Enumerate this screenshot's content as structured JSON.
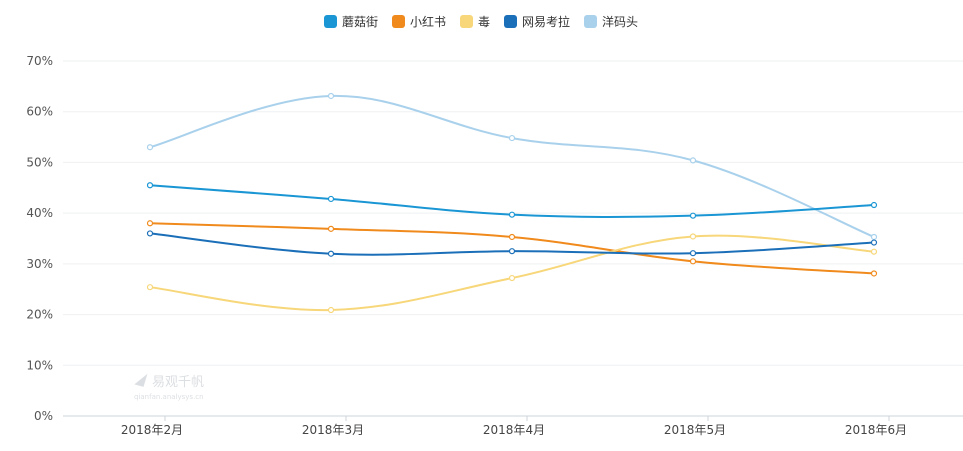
{
  "chart_data": {
    "type": "line",
    "title": "",
    "xlabel": "",
    "ylabel": "",
    "categories": [
      "2018年2月",
      "2018年3月",
      "2018年4月",
      "2018年5月",
      "2018年6月"
    ],
    "ylim": [
      0,
      70
    ],
    "yticks": [
      0,
      10,
      20,
      30,
      40,
      50,
      60,
      70
    ],
    "ytick_labels": [
      "0%",
      "10%",
      "20%",
      "30%",
      "40%",
      "50%",
      "60%",
      "70%"
    ],
    "grid": true,
    "legend_position": "top-center",
    "series": [
      {
        "name": "蘑菇街",
        "color": "#1a96d4",
        "values": [
          45.5,
          42.8,
          39.7,
          39.5,
          41.6
        ]
      },
      {
        "name": "小红书",
        "color": "#f08a1c",
        "values": [
          38.0,
          36.9,
          35.3,
          30.5,
          28.1
        ]
      },
      {
        "name": "毒",
        "color": "#f7d77a",
        "values": [
          25.4,
          20.9,
          27.2,
          35.4,
          32.4
        ]
      },
      {
        "name": "网易考拉",
        "color": "#1b6fb8",
        "values": [
          36.0,
          32.0,
          32.5,
          32.1,
          34.2
        ]
      },
      {
        "name": "洋码头",
        "color": "#a9d1ec",
        "values": [
          53.0,
          63.1,
          54.8,
          50.4,
          35.3
        ]
      }
    ]
  },
  "watermark": {
    "brand": "易观千帆",
    "sub": "qianfan.analysys.cn"
  }
}
